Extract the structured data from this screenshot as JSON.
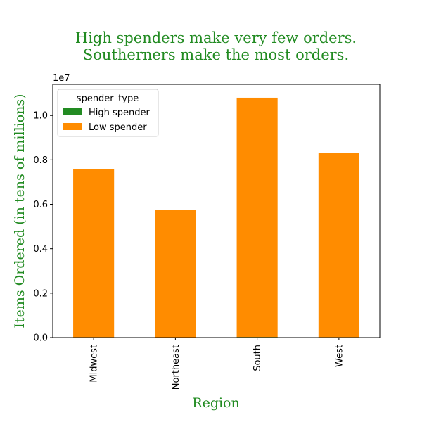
{
  "chart_data": {
    "type": "bar",
    "stacked": true,
    "title_lines": [
      "High spenders make very few orders.",
      "Southerners make the most orders."
    ],
    "title_color": "#228b22",
    "xlabel": "Region",
    "ylabel": "Items Ordered (in tens of millions)",
    "label_color": "#228b22",
    "y_scale_label": "1e7",
    "ylim": [
      0,
      11400000
    ],
    "y_ticks": [
      0,
      2000000,
      4000000,
      6000000,
      8000000,
      10000000
    ],
    "y_tick_labels": [
      "0.0",
      "0.2",
      "0.4",
      "0.6",
      "0.8",
      "1.0"
    ],
    "categories": [
      "Midwest",
      "Northeast",
      "South",
      "West"
    ],
    "series": [
      {
        "name": "High spender",
        "color": "#228b22",
        "values": [
          20000,
          15000,
          25000,
          20000
        ]
      },
      {
        "name": "Low spender",
        "color": "#ff8c00",
        "values": [
          7580000,
          5735000,
          10775000,
          8280000
        ]
      }
    ],
    "legend": {
      "title": "spender_type",
      "placement": "upper-left"
    },
    "grid": false
  }
}
